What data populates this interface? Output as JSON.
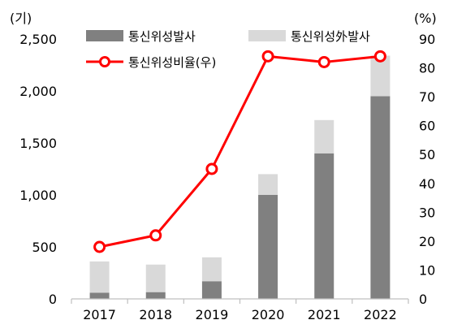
{
  "chart_data": {
    "type": "bar",
    "stacked": true,
    "categories": [
      "2017",
      "2018",
      "2019",
      "2020",
      "2021",
      "2022"
    ],
    "series": [
      {
        "name": "통신위성발사",
        "type": "bar",
        "axis": "left",
        "color": "#808080",
        "values": [
          60,
          65,
          170,
          1000,
          1400,
          1950
        ]
      },
      {
        "name": "통신위성外발사",
        "type": "bar",
        "axis": "left",
        "color": "#d9d9d9",
        "values": [
          300,
          265,
          230,
          200,
          320,
          390
        ]
      },
      {
        "name": "통신위성비율(우)",
        "type": "line",
        "axis": "right",
        "color": "#ff0000",
        "values": [
          18,
          22,
          45,
          84,
          82,
          84
        ]
      }
    ],
    "y_left": {
      "unit": "(기)",
      "range": [
        0,
        2500
      ],
      "ticks": [
        0,
        500,
        1000,
        1500,
        2000,
        2500
      ],
      "tick_labels": [
        "0",
        "500",
        "1,000",
        "1,500",
        "2,000",
        "2,500"
      ]
    },
    "y_right": {
      "unit": "(%)",
      "range": [
        0,
        90
      ],
      "ticks": [
        0,
        10,
        20,
        30,
        40,
        50,
        60,
        70,
        80,
        90
      ],
      "tick_labels": [
        "0",
        "10",
        "20",
        "30",
        "40",
        "50",
        "60",
        "70",
        "80",
        "90"
      ]
    },
    "grid": false,
    "legend_position": "top"
  }
}
